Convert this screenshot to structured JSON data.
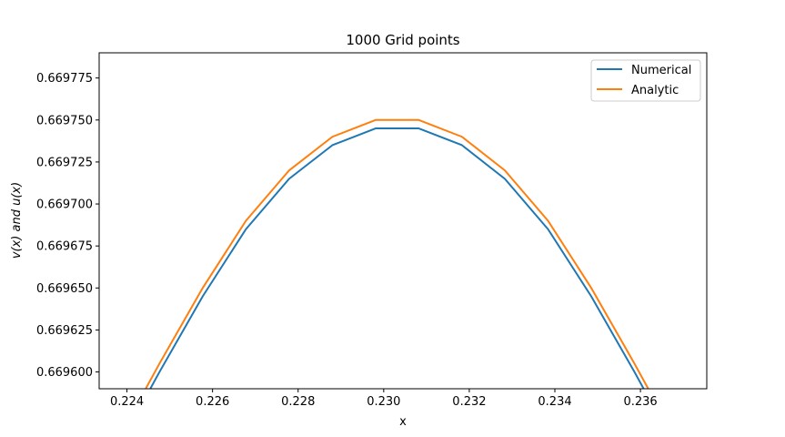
{
  "chart_data": {
    "type": "line",
    "title": "1000 Grid points",
    "xlabel": "x",
    "ylabel_parts": [
      "v(",
      "x",
      ") and ",
      "u(",
      "x",
      ")"
    ],
    "xlim": [
      0.22335,
      0.23755
    ],
    "ylim": [
      0.66959,
      0.66979
    ],
    "xticks": [
      0.224,
      0.226,
      0.228,
      0.23,
      0.232,
      0.234,
      0.236
    ],
    "xtick_labels": [
      "0.224",
      "0.226",
      "0.228",
      "0.230",
      "0.232",
      "0.234",
      "0.236"
    ],
    "yticks": [
      0.6696,
      0.669625,
      0.66965,
      0.669675,
      0.6697,
      0.669725,
      0.66975,
      0.669775
    ],
    "ytick_labels": [
      "0.669600",
      "0.669625",
      "0.669650",
      "0.669675",
      "0.669700",
      "0.669725",
      "0.669750",
      "0.669775"
    ],
    "legend_position": "top-right",
    "grid": false,
    "series": [
      {
        "name": "Numerical",
        "color": "#1f77b4",
        "x": [
          0.22375,
          0.22476,
          0.22577,
          0.22678,
          0.22779,
          0.2288,
          0.22981,
          0.23082,
          0.23183,
          0.23283,
          0.23384,
          0.23485,
          0.23586,
          0.23687
        ],
        "y": [
          0.669553,
          0.6696,
          0.669645,
          0.669685,
          0.669715,
          0.669735,
          0.669745,
          0.669745,
          0.669735,
          0.669715,
          0.669685,
          0.669645,
          0.6696,
          0.669553
        ]
      },
      {
        "name": "Analytic",
        "color": "#ff7f0e",
        "x": [
          0.22375,
          0.22476,
          0.22577,
          0.22678,
          0.22779,
          0.2288,
          0.22981,
          0.23082,
          0.23183,
          0.23283,
          0.23384,
          0.23485,
          0.23586,
          0.23687
        ],
        "y": [
          0.669558,
          0.669605,
          0.66965,
          0.66969,
          0.66972,
          0.66974,
          0.66975,
          0.66975,
          0.66974,
          0.66972,
          0.66969,
          0.66965,
          0.669605,
          0.669558
        ]
      }
    ]
  }
}
